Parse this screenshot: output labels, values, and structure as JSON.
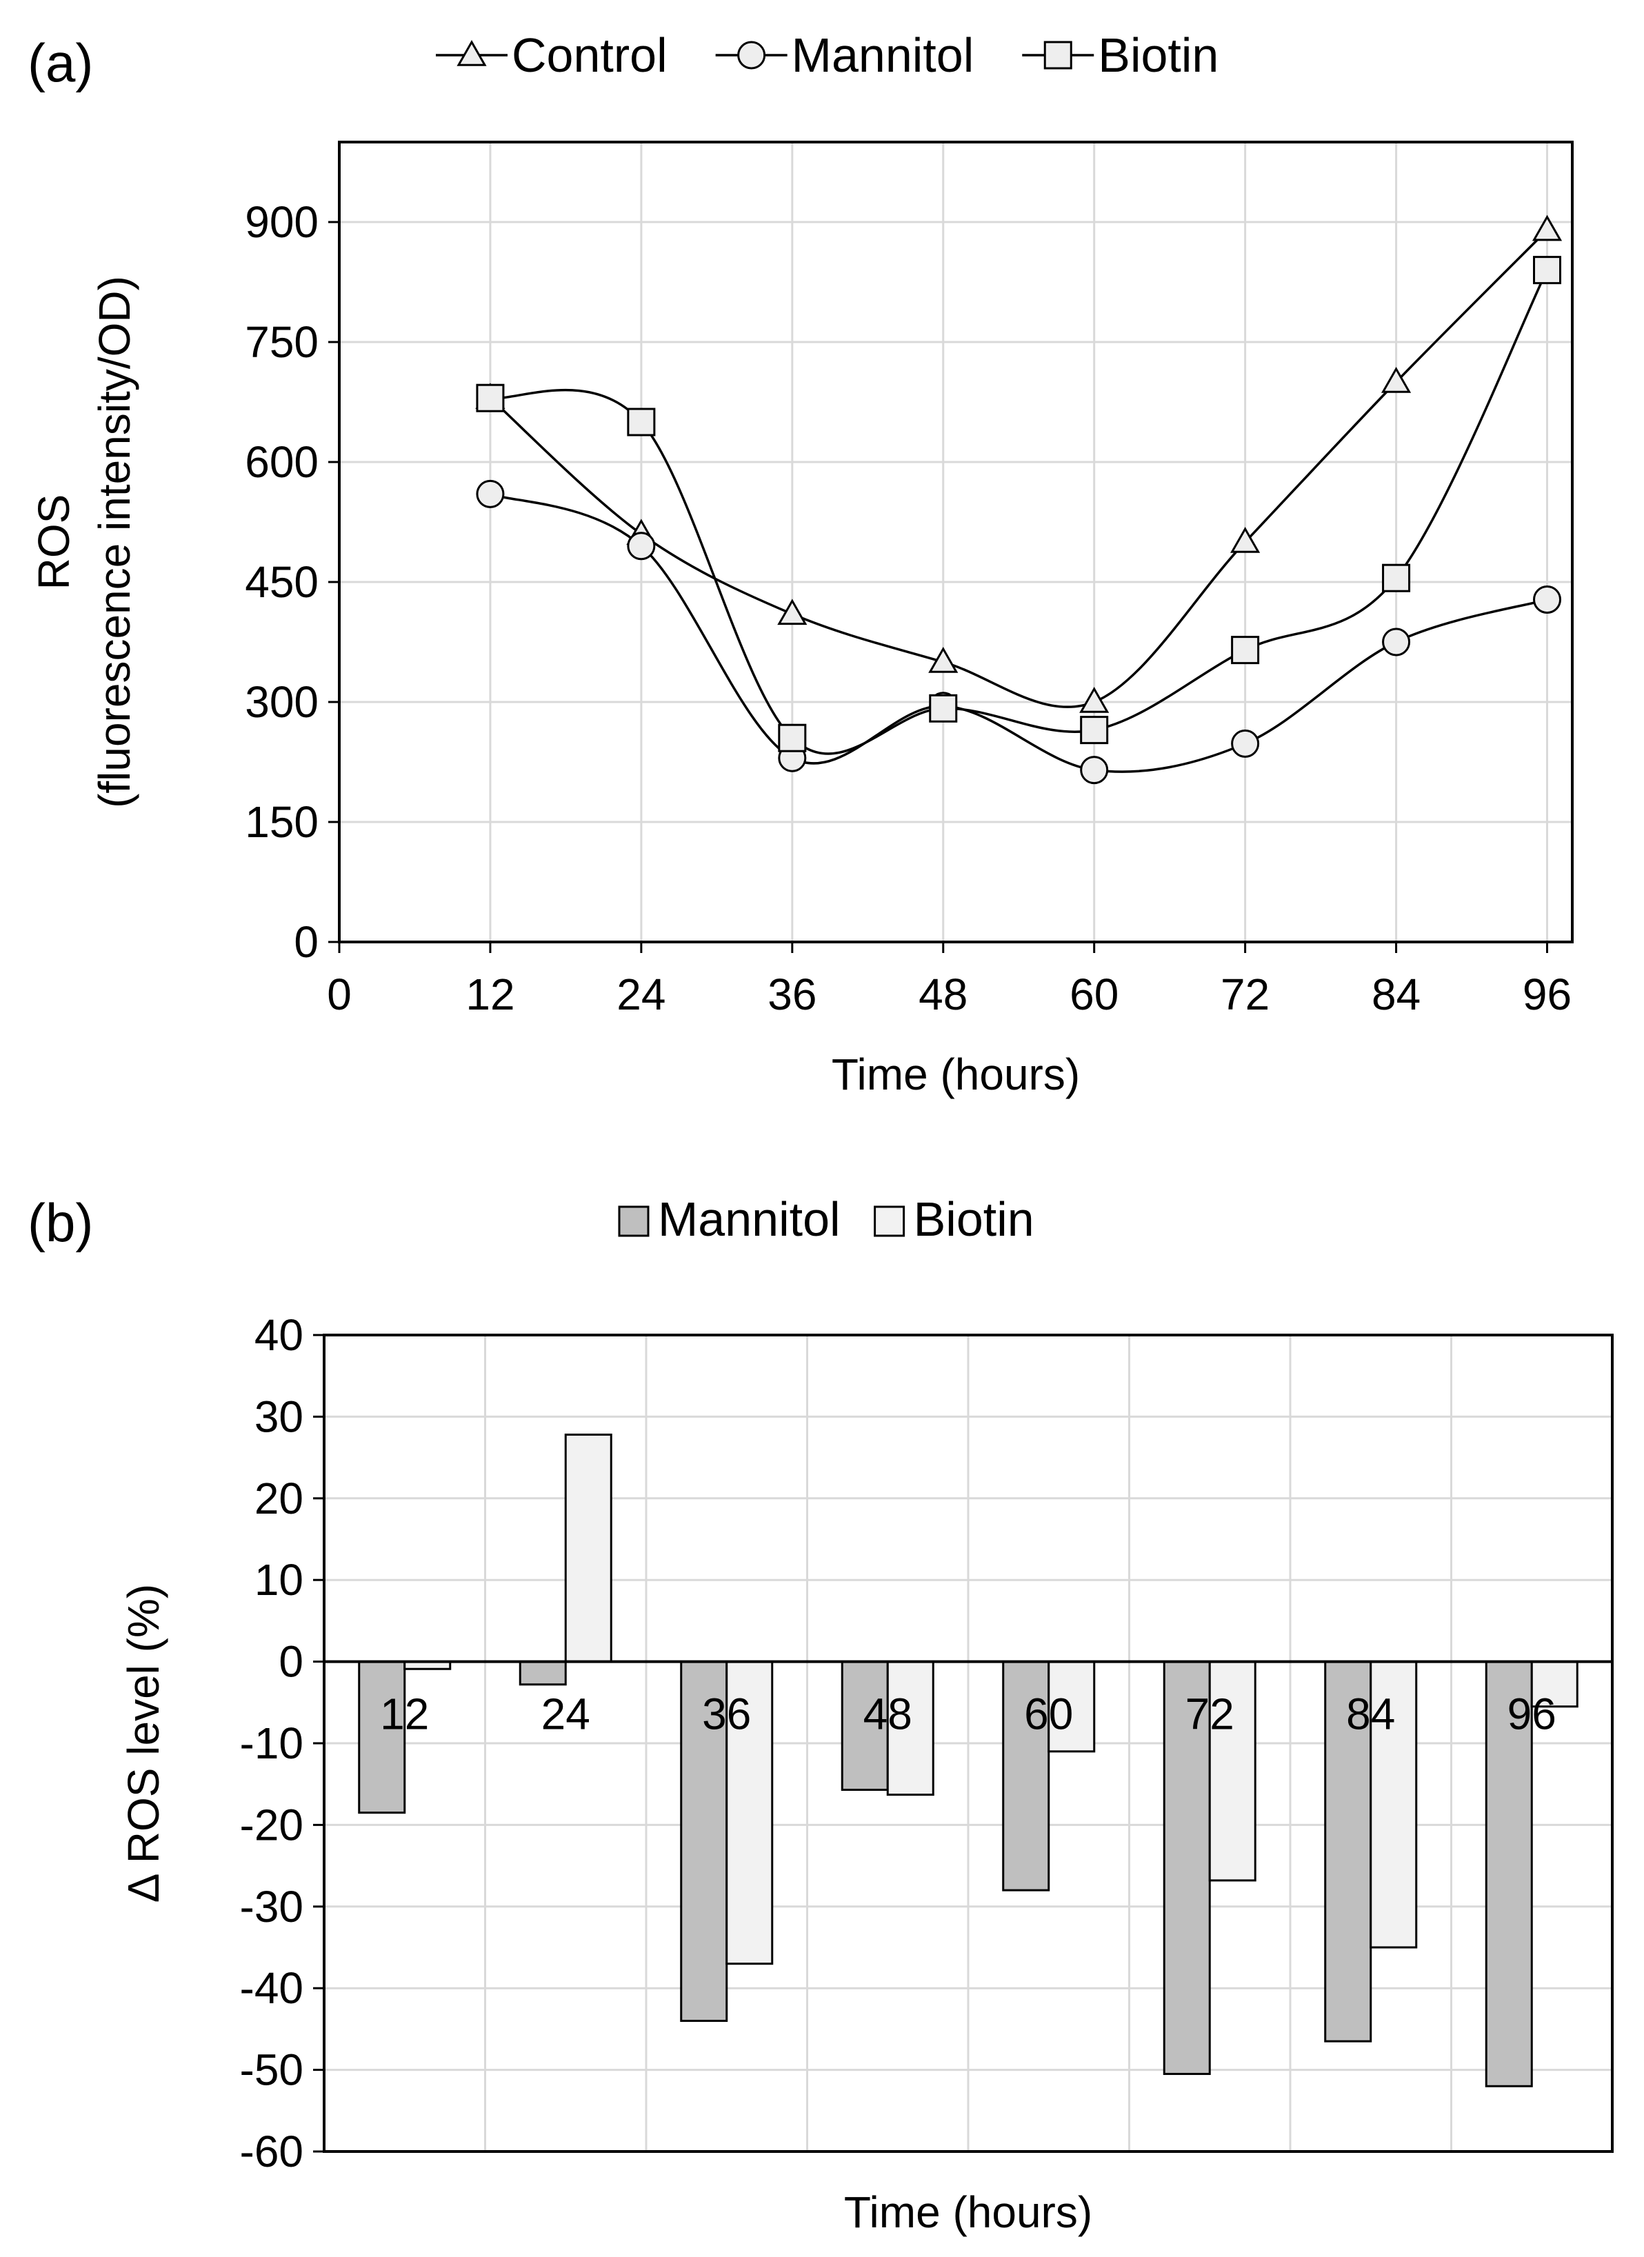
{
  "colors": {
    "frame": "#000000",
    "grid": "#d9d9d9",
    "line": "#000000",
    "marker_fill": "#eeeeee",
    "bar_mannitol": "#bfbfbf",
    "bar_biotin": "#f2f2f2"
  },
  "chart_data": [
    {
      "panel_label": "(a)",
      "type": "line",
      "legend": [
        "Control",
        "Mannitol",
        "Biotin"
      ],
      "legend_position": "top-center",
      "xlabel": "Time (hours)",
      "ylabel": "ROS",
      "ylabel_sub": "(fluorescence intensity/OD)",
      "xlim": [
        0,
        98
      ],
      "ylim": [
        0,
        1000
      ],
      "x_ticks": [
        0,
        12,
        24,
        36,
        48,
        60,
        72,
        84,
        96
      ],
      "x_tick_labels": [
        "0",
        "12",
        "24",
        "36",
        "48",
        "60",
        "72",
        "84",
        "96"
      ],
      "y_ticks": [
        0,
        150,
        300,
        450,
        600,
        750,
        900
      ],
      "y_tick_labels": [
        "0",
        "150",
        "300",
        "450",
        "600",
        "750",
        "900"
      ],
      "grid": true,
      "x": [
        12,
        24,
        36,
        48,
        60,
        72,
        84,
        96
      ],
      "series": [
        {
          "name": "Control",
          "marker": "triangle",
          "values": [
            680,
            510,
            410,
            350,
            300,
            500,
            700,
            890
          ]
        },
        {
          "name": "Mannitol",
          "marker": "circle",
          "values": [
            560,
            495,
            230,
            295,
            215,
            248,
            375,
            428
          ]
        },
        {
          "name": "Biotin",
          "marker": "square",
          "values": [
            680,
            650,
            255,
            292,
            265,
            365,
            455,
            840
          ]
        }
      ]
    },
    {
      "panel_label": "(b)",
      "type": "bar",
      "legend": [
        "Mannitol",
        "Biotin"
      ],
      "legend_position": "top-center",
      "xlabel": "Time (hours)",
      "ylabel": "Δ ROS level  (%)",
      "ylim": [
        -60,
        40
      ],
      "y_ticks": [
        -60,
        -50,
        -40,
        -30,
        -20,
        -10,
        0,
        10,
        20,
        30,
        40
      ],
      "y_tick_labels": [
        "-60",
        "-50",
        "-40",
        "-30",
        "-20",
        "-10",
        "0",
        "10",
        "20",
        "30",
        "40"
      ],
      "grid": true,
      "categories": [
        "12",
        "24",
        "36",
        "48",
        "60",
        "72",
        "84",
        "96"
      ],
      "series": [
        {
          "name": "Mannitol",
          "values": [
            -18.5,
            -2.8,
            -44,
            -15.7,
            -28,
            -50.5,
            -46.5,
            -52
          ]
        },
        {
          "name": "Biotin",
          "values": [
            -0.9,
            27.8,
            -37,
            -16.3,
            -11,
            -26.8,
            -35,
            -5.5
          ]
        }
      ]
    }
  ]
}
